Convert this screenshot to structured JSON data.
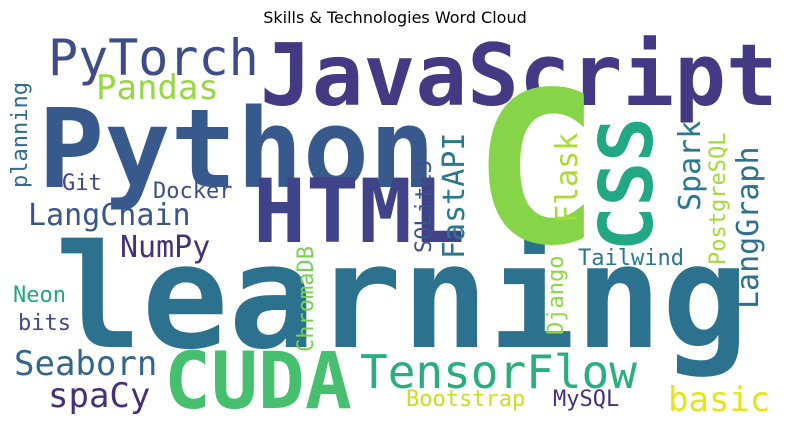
{
  "title": "Skills & Technologies Word Cloud",
  "colors": {
    "purple": "#46307a",
    "indigo": "#404387",
    "blue": "#3a5d8c",
    "steel": "#2f6c8e",
    "teal": "#297b8e",
    "teal2": "#21918c",
    "sea": "#2aa483",
    "green": "#46c06f",
    "lime": "#86d549",
    "yellowgreen": "#b5de2b",
    "yellow": "#d8e219",
    "dark": "#3d1c6c"
  },
  "words": [
    {
      "text": "learning",
      "color": "#2c718e"
    },
    {
      "text": "JavaScript",
      "color": "#443a83"
    },
    {
      "text": "Python",
      "color": "#37598c"
    },
    {
      "text": "C",
      "color": "#86d549"
    },
    {
      "text": "HTML",
      "color": "#404387"
    },
    {
      "text": "CSS",
      "color": "#22a884"
    },
    {
      "text": "CUDA",
      "color": "#46c06f"
    },
    {
      "text": "TensorFlow",
      "color": "#29af7f"
    },
    {
      "text": "PyTorch",
      "color": "#3e4c8a"
    },
    {
      "text": "Pandas",
      "color": "#95d840"
    },
    {
      "text": "LangChain",
      "color": "#3a548c"
    },
    {
      "text": "NumPy",
      "color": "#46307a"
    },
    {
      "text": "Seaborn",
      "color": "#31668e"
    },
    {
      "text": "spaCy",
      "color": "#472d7b"
    },
    {
      "text": "Docker",
      "color": "#3d4e8a"
    },
    {
      "text": "Git",
      "color": "#414487"
    },
    {
      "text": "planning",
      "color": "#2f6c8e"
    },
    {
      "text": "Neon",
      "color": "#25a584"
    },
    {
      "text": "bits",
      "color": "#3f4889"
    },
    {
      "text": "FastAPI",
      "color": "#2a788e"
    },
    {
      "text": "SQLite3",
      "color": "#3b528b"
    },
    {
      "text": "ChromaDB",
      "color": "#7ad151"
    },
    {
      "text": "Flask",
      "color": "#a8db34"
    },
    {
      "text": "Django",
      "color": "#8ed645"
    },
    {
      "text": "Spark",
      "color": "#2a788e"
    },
    {
      "text": "PostgreSQL",
      "color": "#a2da37"
    },
    {
      "text": "LangGraph",
      "color": "#2c728e"
    },
    {
      "text": "Tailwind",
      "color": "#2b758e"
    },
    {
      "text": "Bootstrap",
      "color": "#c8e020"
    },
    {
      "text": "MySQL",
      "color": "#472f7d"
    },
    {
      "text": "basic",
      "color": "#e5e419"
    }
  ]
}
